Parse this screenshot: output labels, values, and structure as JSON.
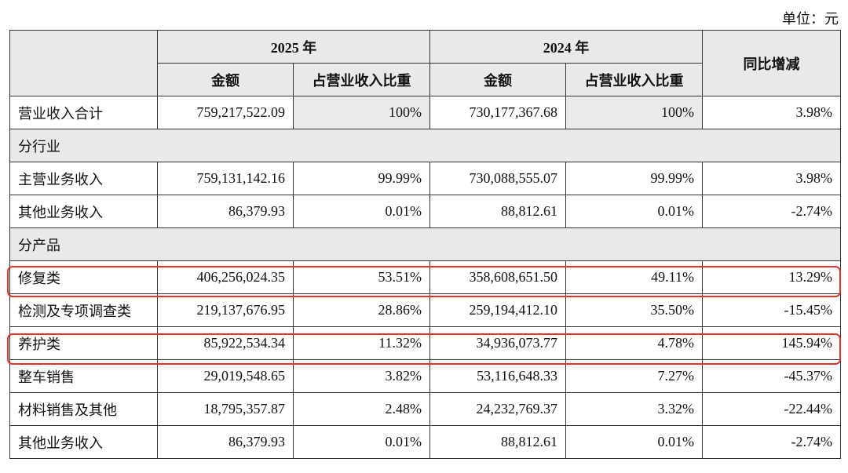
{
  "unit": "单位：元",
  "table": {
    "header": {
      "year_2025": "2025 年",
      "year_2024": "2024 年",
      "yoy": "同比增减",
      "sub": [
        "金额",
        "占营业收入比重",
        "金额",
        "占营业收入比重"
      ]
    },
    "rows": [
      [
        "营业收入合计",
        "759,217,522.09",
        "100%",
        "730,177,367.68",
        "100%",
        "3.98%"
      ],
      [
        "分行业"
      ],
      [
        "主营业务收入",
        "759,131,142.16",
        "99.99%",
        "730,088,555.07",
        "99.99%",
        "3.98%"
      ],
      [
        "其他业务收入",
        "86,379.93",
        "0.01%",
        "88,812.61",
        "0.01%",
        "-2.74%"
      ],
      [
        "分产品"
      ],
      [
        "修复类",
        "406,256,024.35",
        "53.51%",
        "358,608,651.50",
        "49.11%",
        "13.29%"
      ],
      [
        "检测及专项调查类",
        "219,137,676.95",
        "28.86%",
        "259,194,412.10",
        "35.50%",
        "-15.45%"
      ],
      [
        "养护类",
        "85,922,534.34",
        "11.32%",
        "34,936,073.77",
        "4.78%",
        "145.94%"
      ],
      [
        "整车销售",
        "29,019,548.65",
        "3.82%",
        "53,116,648.33",
        "7.27%",
        "-45.37%"
      ],
      [
        "材料销售及其他",
        "18,795,357.87",
        "2.48%",
        "24,232,769.37",
        "3.32%",
        "-22.44%"
      ],
      [
        "其他业务收入",
        "86,379.93",
        "0.01%",
        "88,812.61",
        "0.01%",
        "-2.74%"
      ]
    ]
  }
}
